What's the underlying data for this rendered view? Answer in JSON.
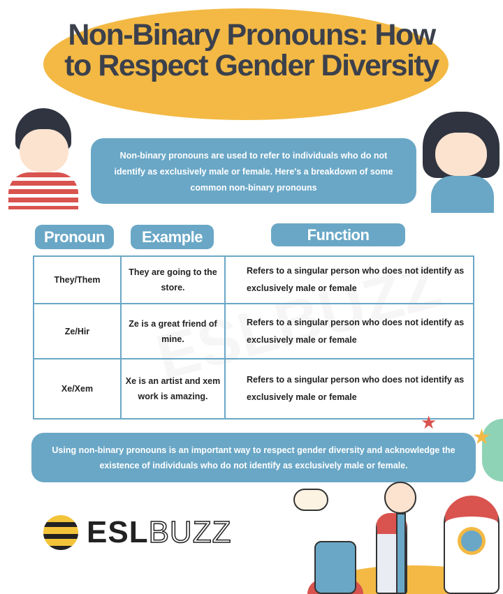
{
  "title": {
    "line1": "Non-Binary Pronouns: How",
    "line2": "to Respect Gender Diversity"
  },
  "intro": "Non-binary pronouns are used to refer to individuals who do not identify as exclusively male or female. Here's a breakdown of some common non-binary pronouns",
  "headers": {
    "pronoun": "Pronoun",
    "example": "Example",
    "function": "Function"
  },
  "rows": [
    {
      "pronoun": "They/Them",
      "example": "They are going to the store.",
      "function": "Refers to a singular person who does not identify as exclusively male or female"
    },
    {
      "pronoun": "Ze/Hir",
      "example": "Ze is a great friend of mine.",
      "function": "Refers to a singular person who does not identify as exclusively male or female"
    },
    {
      "pronoun": "Xe/Xem",
      "example": "Xe is an artist and xem work is amazing.",
      "function": "Refers to a singular person who does not identify as exclusively male or female"
    }
  ],
  "outro": "Using non-binary pronouns is an important way to respect gender diversity and acknowledge the existence of individuals who do not identify as exclusively male or female.",
  "logo": {
    "bold": "ESL",
    "outline": "BUZZ"
  },
  "watermark": "ESLBUZZ",
  "colors": {
    "accent": "#6aa7c6",
    "yellow": "#f3b944",
    "title": "#3b404c"
  }
}
